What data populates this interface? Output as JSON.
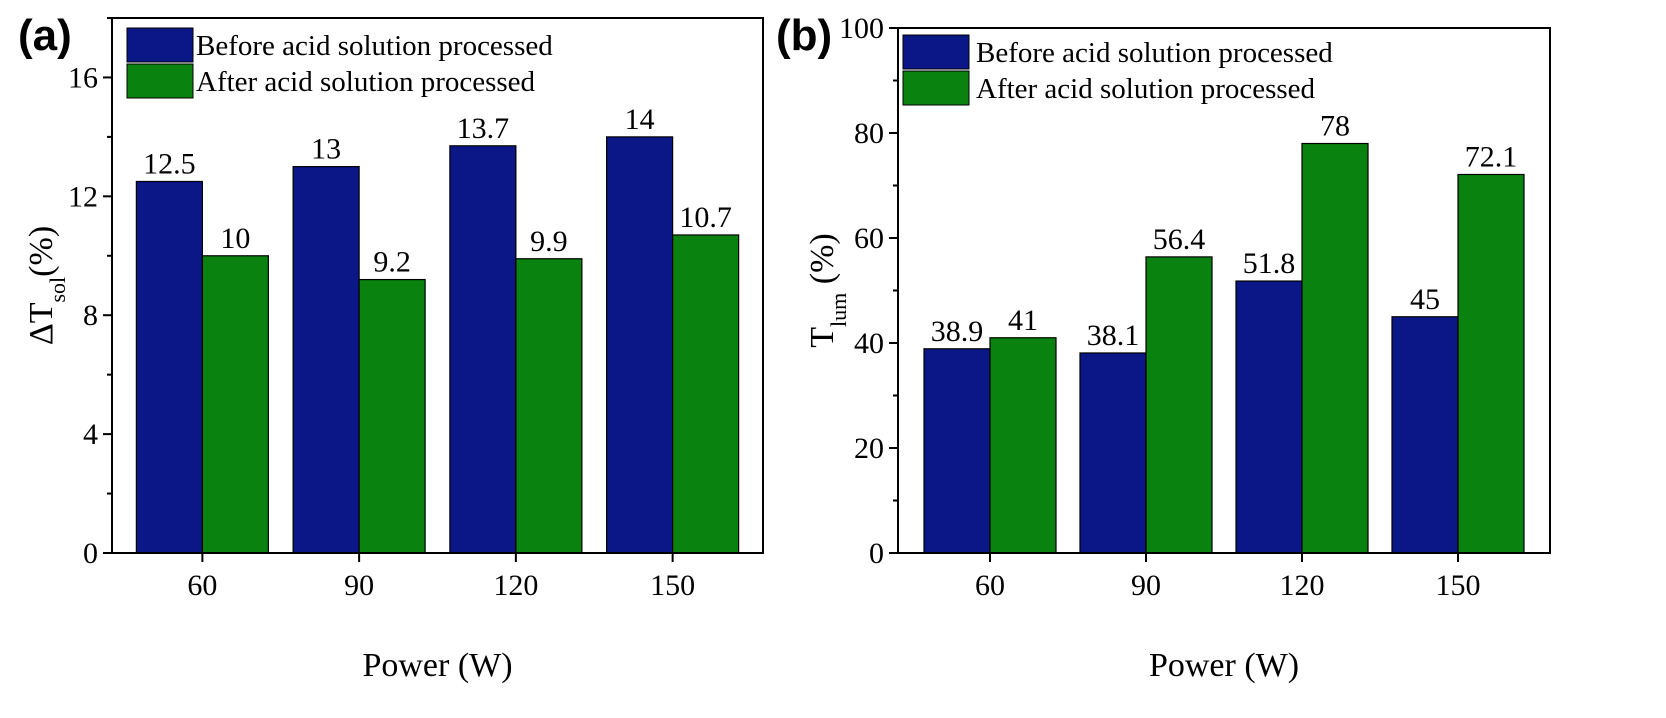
{
  "chart_data": [
    {
      "type": "bar",
      "panel_label": "(a)",
      "categories": [
        "60",
        "90",
        "120",
        "150"
      ],
      "series": [
        {
          "name": "Before acid solution processed",
          "color": "#0b1687",
          "values": [
            12.5,
            13,
            13.7,
            14
          ],
          "labels": [
            "12.5",
            "13",
            "13.7",
            "14"
          ]
        },
        {
          "name": "After acid solution processed",
          "color": "#0a820f",
          "values": [
            10,
            9.2,
            9.9,
            10.7
          ],
          "labels": [
            "10",
            "9.2",
            "9.9",
            "10.7"
          ]
        }
      ],
      "xlabel": "Power (W)",
      "ylabel": {
        "main": "ΔT",
        "sub": "sol",
        "suffix": "(%)"
      },
      "ylim": [
        0,
        18
      ],
      "yticks": [
        "0",
        "4",
        "8",
        "12",
        "16"
      ],
      "legend_position": "top"
    },
    {
      "type": "bar",
      "panel_label": "(b)",
      "categories": [
        "60",
        "90",
        "120",
        "150"
      ],
      "series": [
        {
          "name": "Before acid solution processed",
          "color": "#0b1687",
          "values": [
            38.9,
            38.1,
            51.8,
            45
          ],
          "labels": [
            "38.9",
            "38.1",
            "51.8",
            "45"
          ]
        },
        {
          "name": "After acid solution processed",
          "color": "#0a820f",
          "values": [
            41,
            56.4,
            78,
            72.1
          ],
          "labels": [
            "41",
            "56.4",
            "78",
            "72.1"
          ]
        }
      ],
      "xlabel": "Power (W)",
      "ylabel": {
        "main": "T",
        "sub": "lum",
        "suffix": " (%)"
      },
      "ylim": [
        0,
        100
      ],
      "yticks": [
        "0",
        "20",
        "40",
        "60",
        "80",
        "100"
      ],
      "legend_position": "top"
    }
  ]
}
